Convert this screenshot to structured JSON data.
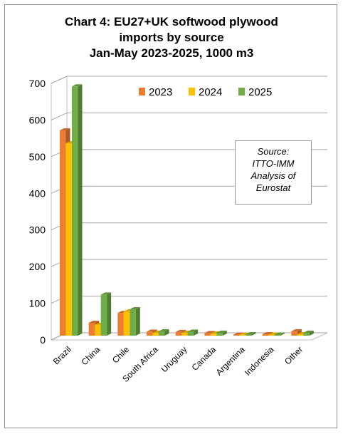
{
  "chart_data": {
    "type": "bar",
    "title_lines": [
      "Chart 4: EU27+UK softwood plywood",
      "imports by source",
      "Jan-May 2023-2025, 1000 m3"
    ],
    "categories": [
      "Brazil",
      "China",
      "Chile",
      "South Africa",
      "Uruguay",
      "Canada",
      "Argentina",
      "Indonesia",
      "Other"
    ],
    "series": [
      {
        "name": "2023",
        "color": "#ED7D31",
        "values": [
          560,
          35,
          62,
          11,
          10,
          7,
          3,
          4,
          12
        ]
      },
      {
        "name": "2024",
        "color": "#FFC000",
        "values": [
          525,
          30,
          66,
          8,
          8,
          6,
          3,
          3,
          4
        ]
      },
      {
        "name": "2025",
        "color": "#70AD47",
        "values": [
          680,
          112,
          72,
          12,
          11,
          8,
          4,
          3,
          8
        ]
      }
    ],
    "yticks": [
      "0",
      "100",
      "200",
      "300",
      "400",
      "500",
      "600",
      "700"
    ],
    "ylim": [
      0,
      700
    ],
    "grid": true,
    "legend_position": "top-right",
    "annotation_lines": [
      "Source:",
      "ITTO-IMM",
      "Analysis of",
      "Eurostat"
    ]
  }
}
